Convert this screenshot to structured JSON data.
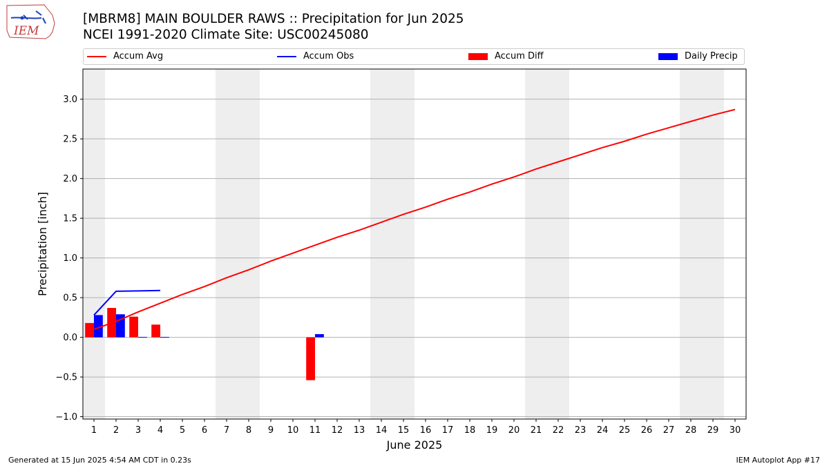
{
  "header": {
    "title_line1": "[MBRM8] MAIN BOULDER RAWS :: Precipitation for Jun 2025",
    "title_line2": "NCEI 1991-2020 Climate Site: USC00245080",
    "logo_text": "IEM"
  },
  "legend": [
    {
      "label": "Accum Avg",
      "kind": "line",
      "color": "#ff0000"
    },
    {
      "label": "Accum Obs",
      "kind": "line",
      "color": "#0000ff"
    },
    {
      "label": "Accum Diff",
      "kind": "bar",
      "color": "#ff0000"
    },
    {
      "label": "Daily Precip",
      "kind": "bar",
      "color": "#0000ff"
    }
  ],
  "footer": {
    "left": "Generated at 15 Jun 2025 4:54 AM CDT in 0.23s",
    "right": "IEM Autoplot App #17"
  },
  "chart_data": {
    "type": "bar",
    "xlabel": "June 2025",
    "ylabel": "Precipitation [inch]",
    "xlim": [
      0.5,
      30.5
    ],
    "ylim": [
      -1.03,
      3.38
    ],
    "x_ticks": [
      1,
      2,
      3,
      4,
      5,
      6,
      7,
      8,
      9,
      10,
      11,
      12,
      13,
      14,
      15,
      16,
      17,
      18,
      19,
      20,
      21,
      22,
      23,
      24,
      25,
      26,
      27,
      28,
      29,
      30
    ],
    "y_ticks": [
      -1.0,
      -0.5,
      0.0,
      0.5,
      1.0,
      1.5,
      2.0,
      2.5,
      3.0
    ],
    "y_tick_labels": [
      "−1.0",
      "−0.5",
      "0.0",
      "0.5",
      "1.0",
      "1.5",
      "2.0",
      "2.5",
      "3.0"
    ],
    "grid": true,
    "weekend_shading": [
      [
        0.5,
        1.5
      ],
      [
        6.5,
        8.5
      ],
      [
        13.5,
        15.5
      ],
      [
        20.5,
        22.5
      ],
      [
        27.5,
        29.5
      ]
    ],
    "series": [
      {
        "name": "Accum Avg",
        "type": "line",
        "color": "#ff0000",
        "x": [
          1,
          2,
          3,
          4,
          5,
          6,
          7,
          8,
          9,
          10,
          11,
          12,
          13,
          14,
          15,
          16,
          17,
          18,
          19,
          20,
          21,
          22,
          23,
          24,
          25,
          26,
          27,
          28,
          29,
          30
        ],
        "values": [
          0.1,
          0.2,
          0.32,
          0.43,
          0.54,
          0.64,
          0.75,
          0.85,
          0.96,
          1.06,
          1.16,
          1.26,
          1.35,
          1.45,
          1.55,
          1.64,
          1.74,
          1.83,
          1.93,
          2.02,
          2.12,
          2.21,
          2.3,
          2.39,
          2.47,
          2.56,
          2.64,
          2.72,
          2.8,
          2.87
        ]
      },
      {
        "name": "Accum Obs",
        "type": "line",
        "color": "#0000ff",
        "x": [
          1,
          2,
          3,
          4
        ],
        "values": [
          0.28,
          0.58,
          0.585,
          0.59
        ]
      },
      {
        "name": "Accum Diff",
        "type": "bar",
        "color": "#ff0000",
        "x": [
          1,
          2,
          3,
          4,
          11
        ],
        "values": [
          0.18,
          0.37,
          0.26,
          0.16,
          -0.54
        ]
      },
      {
        "name": "Daily Precip",
        "type": "bar",
        "color": "#0000ff",
        "x": [
          1,
          2,
          3,
          4,
          11
        ],
        "values": [
          0.28,
          0.29,
          0.005,
          0.005,
          0.04
        ]
      }
    ]
  }
}
